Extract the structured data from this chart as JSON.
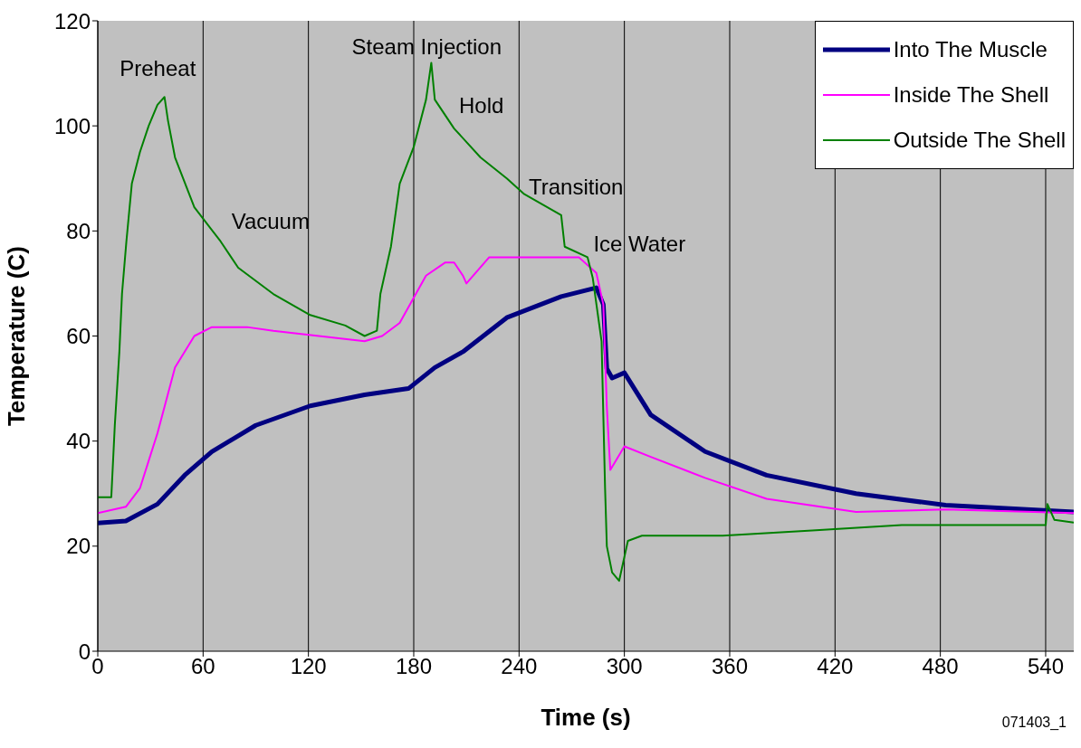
{
  "chart_data": {
    "type": "line",
    "xlabel": "Time (s)",
    "ylabel": "Temperature (C)",
    "xlim": [
      0,
      556
    ],
    "xticks": [
      0,
      60,
      120,
      180,
      240,
      300,
      360,
      420,
      480,
      540
    ],
    "ylim": [
      0,
      120
    ],
    "yticks": [
      0,
      20,
      40,
      60,
      80,
      100,
      120
    ],
    "grid": "x",
    "legend": "top right",
    "marker": "none",
    "line_style": "solid",
    "series": [
      {
        "name": "Into The Muscle",
        "color": "#000080",
        "x": [
          0,
          16,
          34,
          49.5,
          65,
          90,
          121,
          152,
          177,
          192,
          208,
          233,
          264,
          284,
          288,
          290,
          293,
          300,
          315,
          346,
          381,
          432,
          483,
          556
        ],
        "values": [
          24.4,
          24.8,
          28,
          33.5,
          38,
          43,
          46.7,
          48.8,
          50,
          54,
          57,
          63.5,
          67.5,
          69.2,
          66,
          53.8,
          52,
          53,
          45,
          38,
          33.5,
          30,
          27.8,
          26.5
        ]
      },
      {
        "name": "Inside The Shell",
        "color": "#ff00ff",
        "x": [
          0,
          16,
          24,
          34,
          44,
          55,
          65,
          85,
          100,
          126,
          152,
          162,
          172,
          187,
          198,
          203,
          208,
          210,
          223,
          233,
          274,
          284,
          288,
          290,
          292,
          300,
          315,
          346,
          381,
          432,
          483,
          556
        ],
        "values": [
          26.3,
          27.5,
          31,
          41.5,
          54,
          60,
          61.7,
          61.7,
          61,
          60,
          59,
          60,
          62.5,
          71.5,
          74,
          74,
          71.5,
          70,
          75,
          75,
          75,
          72,
          66,
          46.5,
          34.5,
          39,
          37,
          33,
          29,
          26.5,
          27,
          26.3
        ]
      },
      {
        "name": "Outside The Shell",
        "color": "#008000",
        "x": [
          0,
          7.7,
          9.7,
          12.3,
          13.8,
          16.3,
          19.4,
          24,
          29,
          34,
          38,
          40,
          44,
          55,
          70,
          80,
          100,
          121,
          141,
          152,
          159,
          161,
          167,
          172,
          180,
          187,
          190,
          192,
          203,
          218,
          233,
          243,
          264,
          266,
          279,
          282,
          287,
          289,
          290,
          293,
          297,
          302,
          310,
          356,
          407,
          458,
          540,
          541,
          545,
          556
        ],
        "values": [
          29.3,
          29.3,
          43,
          57,
          68,
          78,
          89,
          95,
          100,
          104,
          105.5,
          101,
          94,
          84.5,
          78,
          73,
          68,
          64,
          62,
          60,
          61,
          68,
          77,
          89,
          96,
          105,
          112,
          105,
          99.5,
          94,
          90,
          87,
          83,
          77,
          75,
          71,
          59,
          31,
          20,
          15,
          13.4,
          21,
          22,
          22,
          23,
          24,
          24,
          28,
          25,
          24.5
        ]
      }
    ],
    "annotations": [
      "Preheat",
      "Vacuum",
      "Steam Injection",
      "Hold",
      "Transition",
      "Ice Water",
      "071403_1"
    ]
  }
}
